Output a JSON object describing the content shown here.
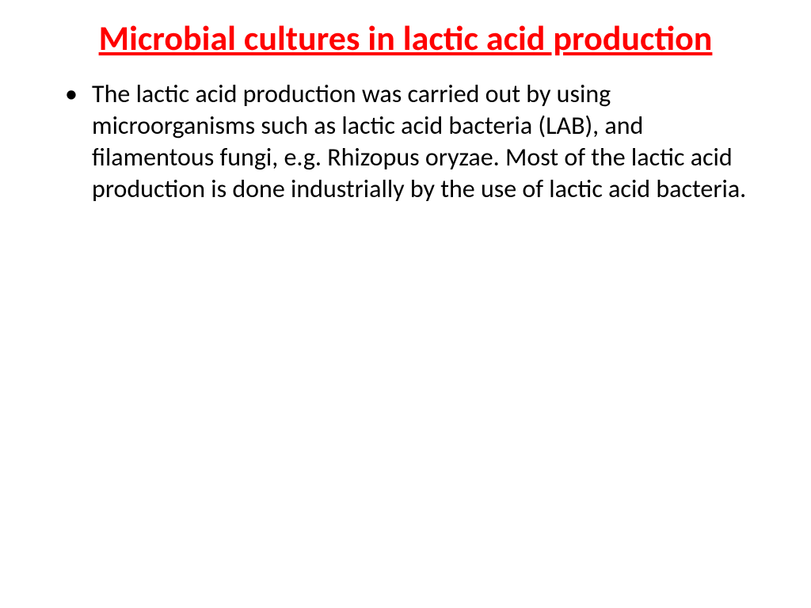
{
  "slide": {
    "title": "Microbial cultures in lactic acid production",
    "title_color": "#ff0000",
    "title_fontsize": 44,
    "title_fontweight": "bold",
    "title_underline": true,
    "body_color": "#000000",
    "body_fontsize": 32,
    "background_color": "#ffffff",
    "bullets": [
      {
        "text": "The lactic acid production was carried out by using microorganisms such as lactic acid bacteria (LAB), and filamentous fungi, e.g. Rhizopus oryzae. Most of the lactic acid production is done industrially by the use of lactic acid bacteria."
      }
    ]
  }
}
